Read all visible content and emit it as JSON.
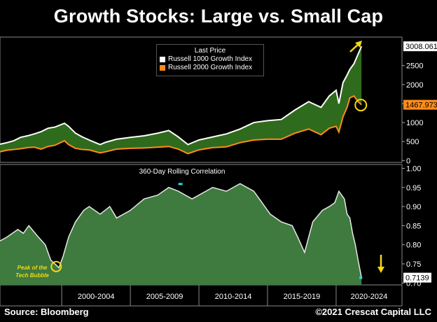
{
  "title": "Growth Stocks: Large vs. Small Cap",
  "footer": {
    "source": "Source: Bloomberg",
    "credit": "©2021 Crescat Capital LLC"
  },
  "colors": {
    "large_cap_line": "#ffffff",
    "small_cap_line": "#ff8c1a",
    "fill_between": "#2f6b1c",
    "correlation_fill": "#3f7a3f",
    "annotation": "#f5d90c",
    "last_value_highlight": "#ff8c1a"
  },
  "annotations": {
    "tech_bubble_line1": "Peak of the",
    "tech_bubble_line2": "Tech Bubble"
  },
  "chart_data": [
    {
      "type": "line",
      "legend_title": "Last Price",
      "legend_position": "top-center",
      "series": [
        {
          "name": "Russell 1000 Growth Index",
          "last_value": "3008.061",
          "x": [
            1995.5,
            1996.0,
            1996.5,
            1997.0,
            1997.5,
            1998.0,
            1998.5,
            1999.0,
            1999.5,
            2000.2,
            2000.5,
            2001.0,
            2001.5,
            2002.0,
            2002.8,
            2003.2,
            2004.0,
            2005.0,
            2006.0,
            2007.0,
            2007.8,
            2008.5,
            2009.2,
            2010.0,
            2011.0,
            2012.0,
            2013.0,
            2014.0,
            2015.0,
            2016.0,
            2017.0,
            2018.0,
            2018.9,
            2019.5,
            2020.0,
            2020.2,
            2020.5,
            2020.8,
            2021.0,
            2021.3,
            2021.6,
            2021.85
          ],
          "values": [
            430,
            470,
            520,
            610,
            650,
            700,
            760,
            850,
            880,
            980,
            900,
            720,
            620,
            540,
            420,
            480,
            560,
            610,
            650,
            720,
            790,
            620,
            420,
            540,
            620,
            700,
            830,
            1000,
            1050,
            1080,
            1330,
            1550,
            1400,
            1700,
            1850,
            1500,
            2050,
            2250,
            2400,
            2550,
            2800,
            3008
          ]
        },
        {
          "name": "Russell 2000 Growth Index",
          "last_value": "1467.973",
          "x": [
            1995.5,
            1996.0,
            1996.5,
            1997.0,
            1997.5,
            1998.0,
            1998.5,
            1999.0,
            1999.5,
            2000.2,
            2000.5,
            2001.0,
            2001.5,
            2002.0,
            2002.8,
            2003.2,
            2004.0,
            2005.0,
            2006.0,
            2007.0,
            2007.8,
            2008.5,
            2009.2,
            2010.0,
            2011.0,
            2012.0,
            2013.0,
            2014.0,
            2015.0,
            2016.0,
            2017.0,
            2018.0,
            2018.9,
            2019.5,
            2020.0,
            2020.2,
            2020.5,
            2020.8,
            2021.0,
            2021.3,
            2021.6,
            2021.85
          ],
          "values": [
            230,
            270,
            290,
            310,
            340,
            350,
            300,
            370,
            400,
            520,
            420,
            320,
            290,
            280,
            200,
            230,
            300,
            320,
            330,
            350,
            370,
            300,
            180,
            280,
            340,
            360,
            470,
            540,
            560,
            560,
            720,
            830,
            680,
            850,
            900,
            750,
            1150,
            1400,
            1650,
            1700,
            1550,
            1468
          ]
        }
      ],
      "y_ticks": [
        0,
        500,
        1000,
        1500,
        2000,
        2500
      ],
      "ylim": [
        -50,
        3250
      ]
    },
    {
      "type": "area",
      "title": "360-Day Rolling Correlation",
      "series": [
        {
          "name": "360-Day Rolling Correlation",
          "last_value": "0.7139",
          "x": [
            1995.5,
            1996.0,
            1996.8,
            1997.2,
            1997.6,
            1998.3,
            1998.8,
            1999.0,
            1999.2,
            1999.5,
            1999.8,
            2000.1,
            2000.5,
            2001.0,
            2001.6,
            2002.0,
            2002.8,
            2003.5,
            2004.0,
            2005.0,
            2006.0,
            2007.0,
            2007.8,
            2008.5,
            2009.5,
            2010.0,
            2011.0,
            2012.0,
            2013.0,
            2014.0,
            2014.6,
            2015.2,
            2016.0,
            2016.8,
            2017.2,
            2017.7,
            2018.3,
            2019.0,
            2019.5,
            2019.9,
            2020.2,
            2020.6,
            2020.8,
            2021.0,
            2021.2,
            2021.4,
            2021.6,
            2021.85
          ],
          "values": [
            0.81,
            0.82,
            0.84,
            0.83,
            0.85,
            0.82,
            0.8,
            0.78,
            0.76,
            0.75,
            0.74,
            0.77,
            0.82,
            0.86,
            0.89,
            0.9,
            0.88,
            0.9,
            0.87,
            0.89,
            0.92,
            0.93,
            0.95,
            0.94,
            0.92,
            0.93,
            0.95,
            0.94,
            0.96,
            0.94,
            0.91,
            0.88,
            0.86,
            0.85,
            0.82,
            0.78,
            0.86,
            0.89,
            0.9,
            0.91,
            0.94,
            0.92,
            0.88,
            0.87,
            0.83,
            0.8,
            0.76,
            0.714
          ]
        }
      ],
      "y_ticks": [
        0.7,
        0.75,
        0.8,
        0.85,
        0.9,
        0.95,
        1.0
      ],
      "y_tick_labels": [
        "0.70",
        "0.75",
        "0.80",
        "0.85",
        "0.90",
        "0.95",
        "1.00"
      ],
      "ylim": [
        0.695,
        1.01
      ],
      "x_tick_labels": [
        "2000-2004",
        "2005-2009",
        "2010-2014",
        "2015-2019",
        "2020-2024"
      ],
      "x_range": [
        1995.5,
        2024.8
      ]
    }
  ]
}
